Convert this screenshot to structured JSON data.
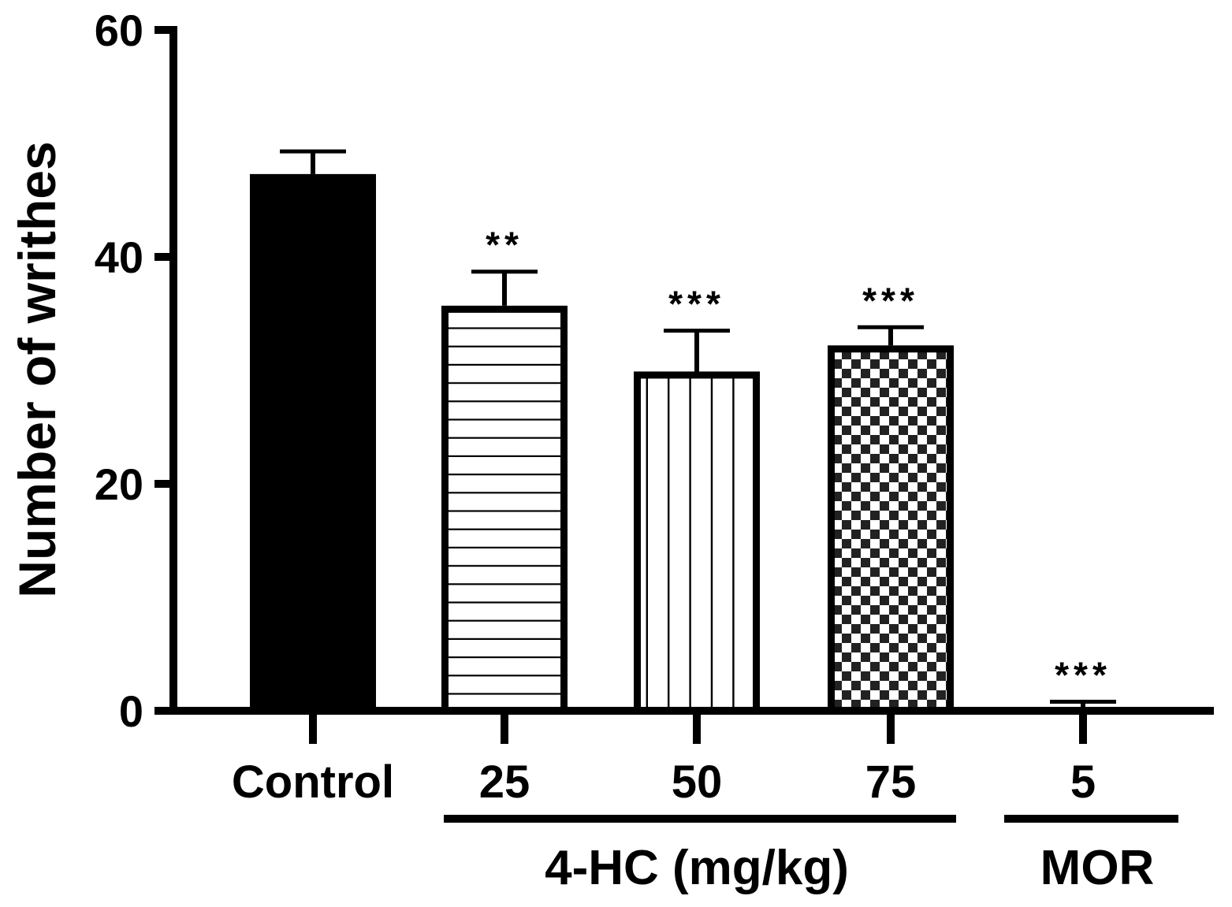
{
  "chart_data": {
    "type": "bar",
    "categories": [
      "Control",
      "25",
      "50",
      "75",
      "5"
    ],
    "values": [
      47.3,
      35.7,
      29.9,
      32.2,
      0.3
    ],
    "errors": [
      2.0,
      3.0,
      3.6,
      1.6,
      0.5
    ],
    "significance": [
      "",
      "**",
      "***",
      "***",
      "***"
    ],
    "patterns": [
      "solid",
      "horizontal-lines",
      "vertical-lines",
      "checkerboard",
      "solid"
    ],
    "ylabel": "Number of writhes",
    "xlabel": "",
    "ylim": [
      0,
      60
    ],
    "yticks": [
      0,
      20,
      40,
      60
    ],
    "groups": [
      {
        "label": "4-HC (mg/kg)",
        "categories": [
          "25",
          "50",
          "75"
        ]
      },
      {
        "label": "MOR",
        "categories": [
          "5"
        ]
      }
    ],
    "grid": false,
    "legend": "none",
    "colors": {
      "bar": "#000000",
      "background": "#ffffff"
    }
  }
}
